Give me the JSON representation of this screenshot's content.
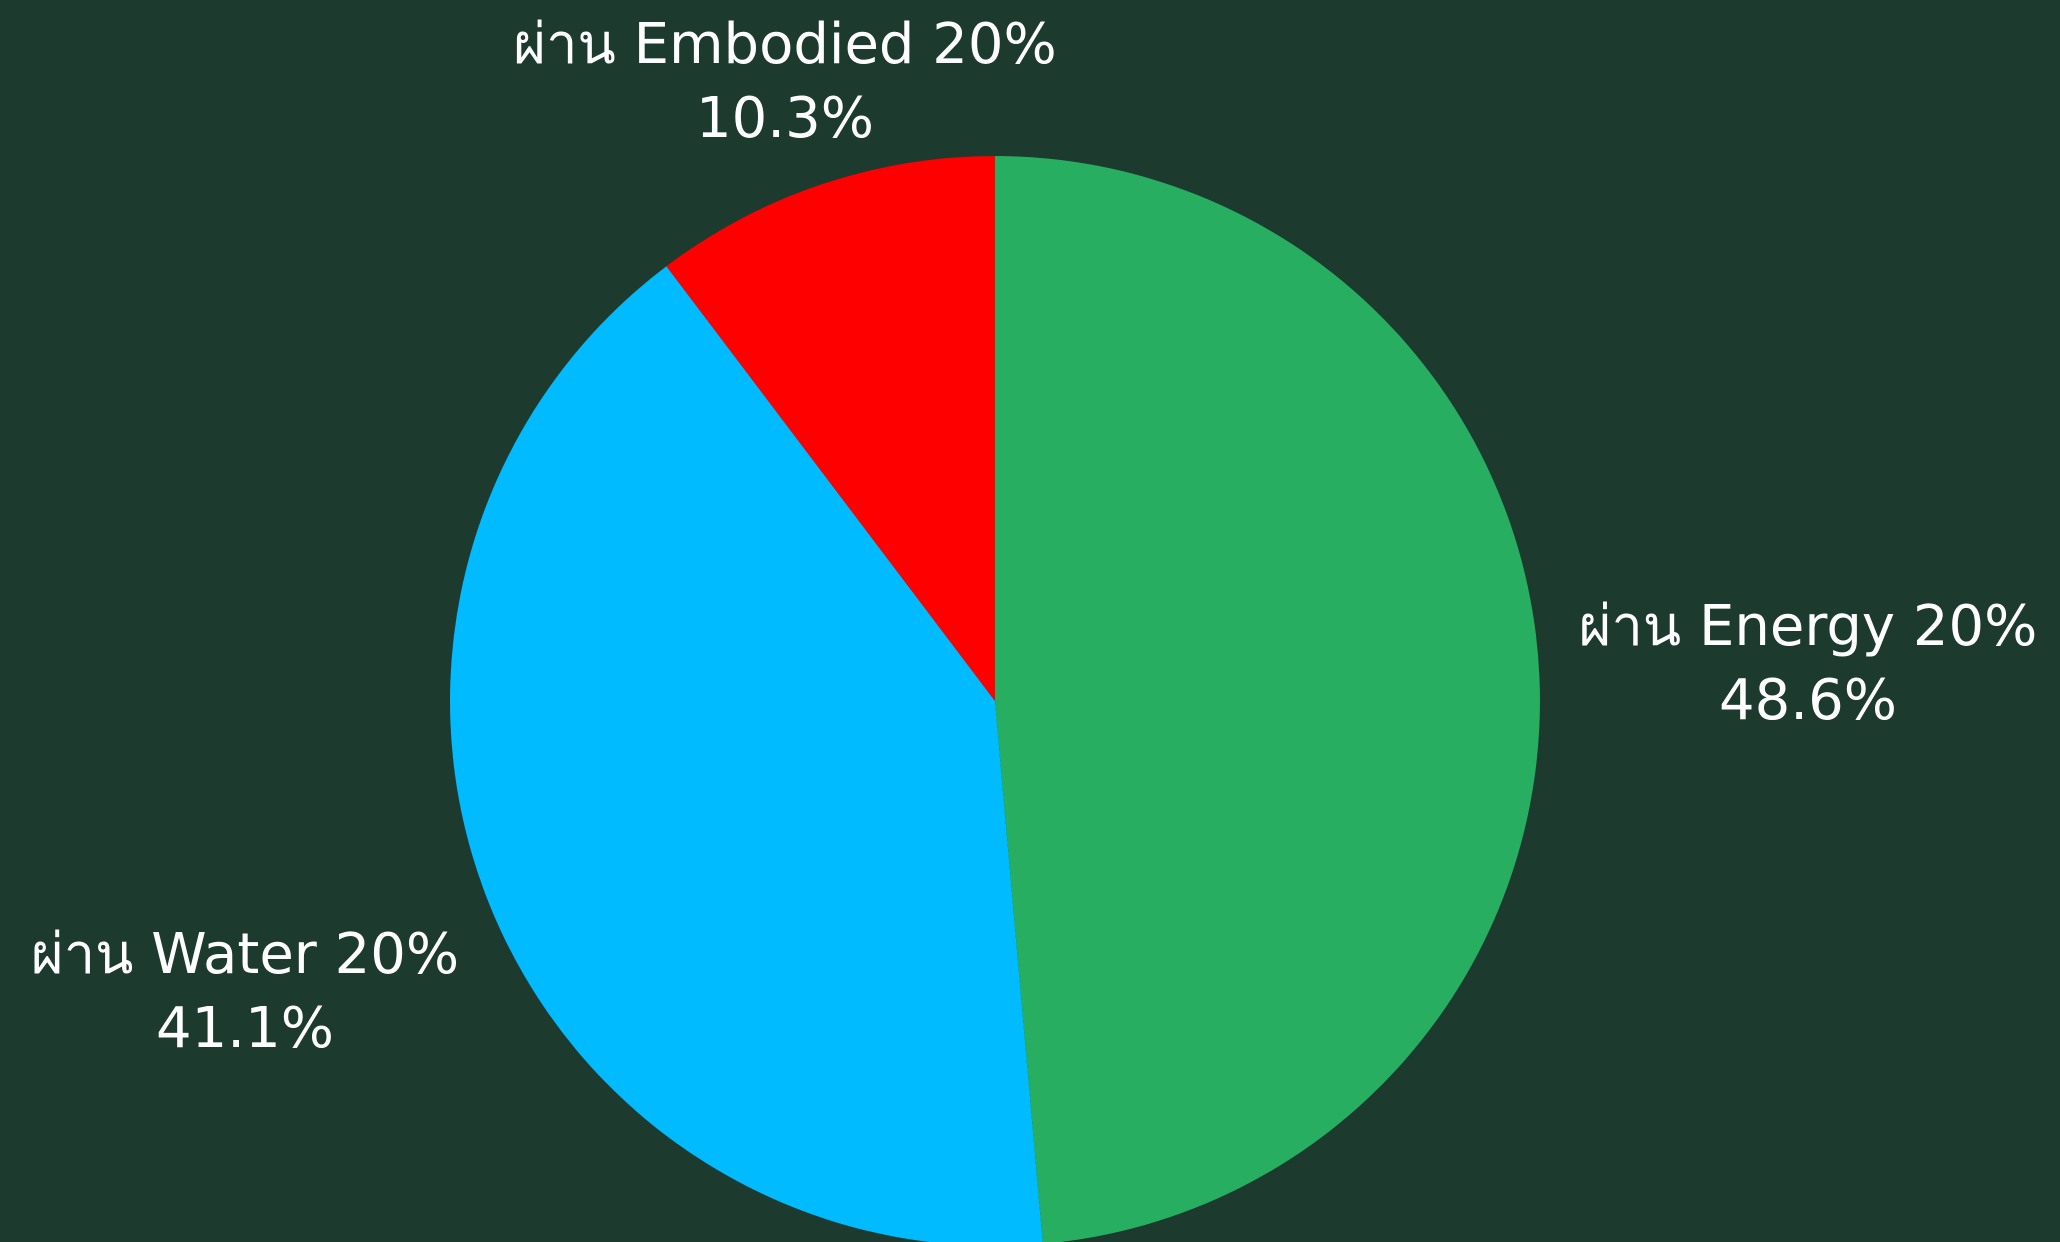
{
  "chart_data": {
    "type": "pie",
    "slices": [
      {
        "label": "ผ่าน Energy 20%",
        "value": 48.6,
        "value_label": "48.6%",
        "color": "#27ae60"
      },
      {
        "label": "ผ่าน Water 20%",
        "value": 41.1,
        "value_label": "41.1%",
        "color": "#00bbff"
      },
      {
        "label": "ผ่าน Embodied 20%",
        "value": 10.3,
        "value_label": "10.3%",
        "color": "#ff0000"
      }
    ],
    "start_angle": "12 o'clock",
    "direction": "clockwise",
    "background_color": "#1c3a2e",
    "label_color": "#ffffff",
    "legend": "none"
  }
}
